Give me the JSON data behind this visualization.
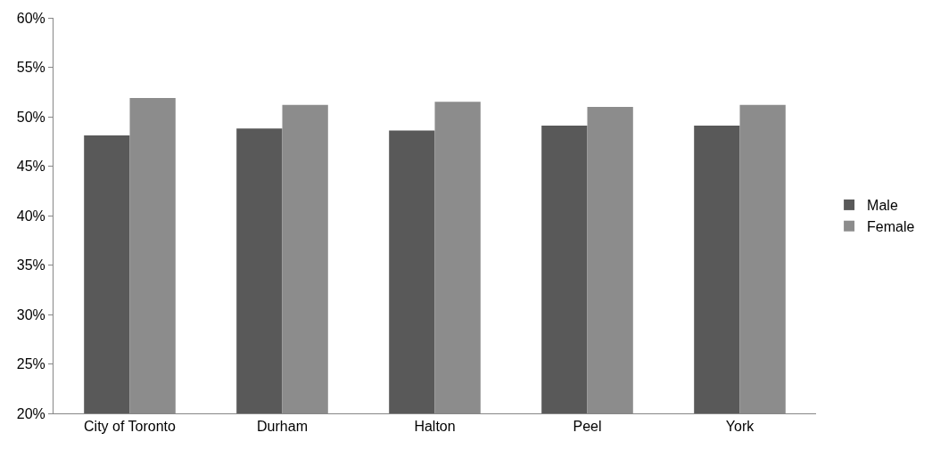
{
  "chart_data": {
    "type": "bar",
    "categories": [
      "City of Toronto",
      "Durham",
      "Halton",
      "Peel",
      "York"
    ],
    "series": [
      {
        "name": "Male",
        "color": "#595959",
        "values": [
          48.1,
          48.8,
          48.6,
          49.1,
          49.1
        ]
      },
      {
        "name": "Female",
        "color": "#8c8c8c",
        "values": [
          51.9,
          51.2,
          51.5,
          51.0,
          51.2
        ]
      }
    ],
    "ylim": [
      20,
      60
    ],
    "yticks": [
      {
        "value": 20,
        "label": "20%"
      },
      {
        "value": 25,
        "label": "25%"
      },
      {
        "value": 30,
        "label": "30%"
      },
      {
        "value": 35,
        "label": "35%"
      },
      {
        "value": 40,
        "label": "40%"
      },
      {
        "value": 45,
        "label": "45%"
      },
      {
        "value": 50,
        "label": "50%"
      },
      {
        "value": 55,
        "label": "55%"
      },
      {
        "value": 60,
        "label": "60%"
      }
    ],
    "legend": "right"
  }
}
